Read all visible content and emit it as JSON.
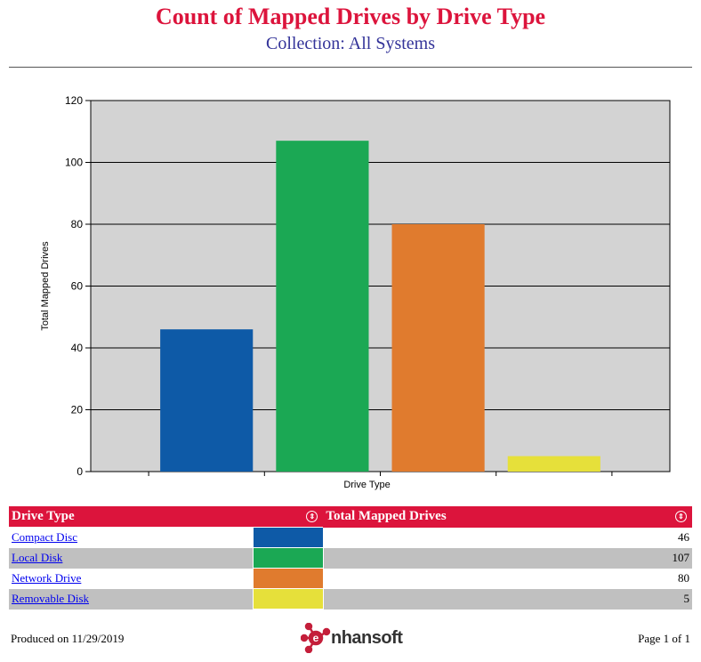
{
  "header": {
    "title": "Count of Mapped Drives by Drive Type",
    "subtitle": "Collection: All Systems"
  },
  "chart_data": {
    "type": "bar",
    "categories": [
      "Compact Disc",
      "Local Disk",
      "Network Drive",
      "Removable Disk"
    ],
    "values": [
      46,
      107,
      80,
      5
    ],
    "colors": [
      "#0e5aa7",
      "#1ba854",
      "#e07b2e",
      "#e6e03a"
    ],
    "xlabel": "Drive Type",
    "ylabel": "Total Mapped Drives",
    "ylim": [
      0,
      120
    ],
    "yticks": [
      "0",
      "20",
      "40",
      "60",
      "80",
      "100",
      "120"
    ],
    "grid": true,
    "background": "#d3d3d3"
  },
  "table": {
    "columns": [
      "Drive Type",
      "Total Mapped Drives"
    ],
    "sort_icon": "sort-icon",
    "rows": [
      {
        "label": "Compact Disc",
        "value": "46",
        "color": "#0e5aa7"
      },
      {
        "label": "Local Disk",
        "value": "107",
        "color": "#1ba854"
      },
      {
        "label": "Network Drive",
        "value": "80",
        "color": "#e07b2e"
      },
      {
        "label": "Removable Disk",
        "value": "5",
        "color": "#e6e03a"
      }
    ]
  },
  "footer": {
    "produced": "Produced on 11/29/2019",
    "page": "Page 1 of 1",
    "logo_text": "nhansoft",
    "logo_icon": "enhansoft-logo-icon"
  }
}
